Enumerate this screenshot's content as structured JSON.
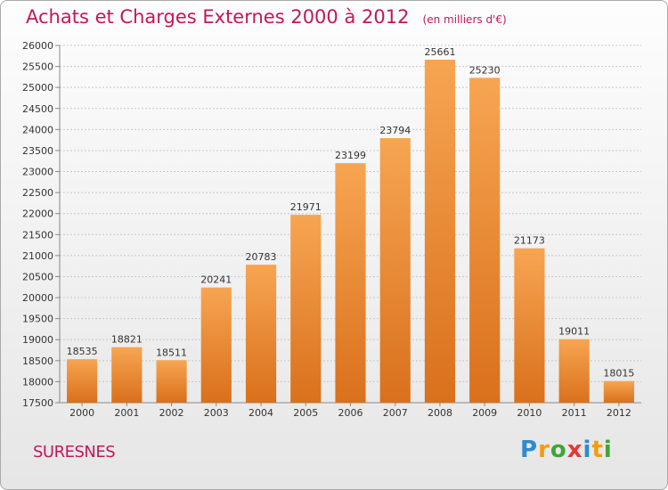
{
  "header": {
    "title": "Achats et Charges Externes 2000 à 2012",
    "unit": "(en milliers d'€)"
  },
  "footer": {
    "city": "SURESNES",
    "logo": "Proxiti"
  },
  "colors": {
    "bar_light": "#f7a552",
    "bar_dark": "#d9701c",
    "title": "#c2185b",
    "grid": "#c8c8c8"
  },
  "chart_data": {
    "type": "bar",
    "title": "Achats et Charges Externes 2000 à 2012",
    "xlabel": "",
    "ylabel": "",
    "categories": [
      "2000",
      "2001",
      "2002",
      "2003",
      "2004",
      "2005",
      "2006",
      "2007",
      "2008",
      "2009",
      "2010",
      "2011",
      "2012"
    ],
    "values": [
      18535,
      18821,
      18511,
      20241,
      20783,
      21971,
      23199,
      23794,
      25661,
      25230,
      21173,
      19011,
      18015
    ],
    "ylim": [
      17500,
      26000
    ],
    "yticks": [
      17500,
      18000,
      18500,
      19000,
      19500,
      20000,
      20500,
      21000,
      21500,
      22000,
      22500,
      23000,
      23500,
      24000,
      24500,
      25000,
      25500,
      26000
    ],
    "grid": true,
    "legend": "none"
  }
}
